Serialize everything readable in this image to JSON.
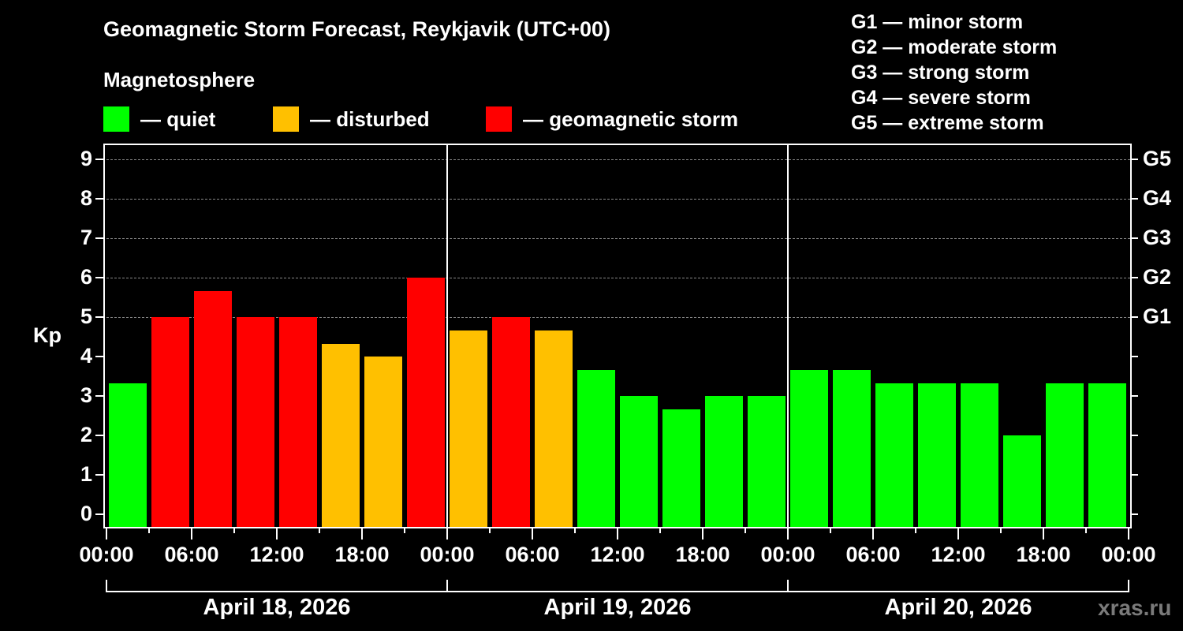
{
  "title": "Geomagnetic Storm Forecast, Reykjavik (UTC+00)",
  "legend": {
    "heading": "Magnetosphere",
    "items": [
      {
        "label": "— quiet",
        "color": "#00ff00"
      },
      {
        "label": "— disturbed",
        "color": "#ffc000"
      },
      {
        "label": "— geomagnetic storm",
        "color": "#ff0000"
      }
    ]
  },
  "storm_scale": [
    "G1 — minor storm",
    "G2 — moderate storm",
    "G3 — strong storm",
    "G4 — severe storm",
    "G5 — extreme storm"
  ],
  "y_axis_label": "Kp",
  "watermark": "xras.ru",
  "chart_data": {
    "type": "bar",
    "title": "Geomagnetic Storm Forecast, Reykjavik (UTC+00)",
    "xlabel": "",
    "ylabel": "Kp",
    "ylim": [
      0,
      9
    ],
    "yticks": [
      0,
      1,
      2,
      3,
      4,
      5,
      6,
      7,
      8,
      9
    ],
    "right_axis_labels": [
      {
        "kp": 5,
        "label": "G1"
      },
      {
        "kp": 6,
        "label": "G2"
      },
      {
        "kp": 7,
        "label": "G3"
      },
      {
        "kp": 8,
        "label": "G4"
      },
      {
        "kp": 9,
        "label": "G5"
      }
    ],
    "grid": "dashed horizontal at Kp 5-9",
    "x_tick_labels": [
      "00:00",
      "06:00",
      "12:00",
      "18:00",
      "00:00",
      "06:00",
      "12:00",
      "18:00",
      "00:00",
      "06:00",
      "12:00",
      "18:00",
      "00:00"
    ],
    "days": [
      "April 18, 2026",
      "April 19, 2026",
      "April 20, 2026"
    ],
    "interval_hours": 3,
    "categories": [
      "Apr 18 00-03",
      "Apr 18 03-06",
      "Apr 18 06-09",
      "Apr 18 09-12",
      "Apr 18 12-15",
      "Apr 18 15-18",
      "Apr 18 18-21",
      "Apr 18 21-24",
      "Apr 19 00-03",
      "Apr 19 03-06",
      "Apr 19 06-09",
      "Apr 19 09-12",
      "Apr 19 12-15",
      "Apr 19 15-18",
      "Apr 19 18-21",
      "Apr 19 21-24",
      "Apr 20 00-03",
      "Apr 20 03-06",
      "Apr 20 06-09",
      "Apr 20 09-12",
      "Apr 20 12-15",
      "Apr 20 15-18",
      "Apr 20 18-21",
      "Apr 20 21-24"
    ],
    "values": [
      3.33,
      5,
      5.67,
      5,
      5,
      4.33,
      4,
      6,
      4.67,
      5,
      4.67,
      3.67,
      3,
      2.67,
      3,
      3,
      3.67,
      3.67,
      3.33,
      3.33,
      3.33,
      2,
      3.33,
      3.33
    ],
    "status": [
      "quiet",
      "storm",
      "storm",
      "storm",
      "storm",
      "disturbed",
      "disturbed",
      "storm",
      "disturbed",
      "storm",
      "disturbed",
      "quiet",
      "quiet",
      "quiet",
      "quiet",
      "quiet",
      "quiet",
      "quiet",
      "quiet",
      "quiet",
      "quiet",
      "quiet",
      "quiet",
      "quiet"
    ],
    "status_colors": {
      "quiet": "#00ff00",
      "disturbed": "#ffc000",
      "storm": "#ff0000"
    }
  }
}
